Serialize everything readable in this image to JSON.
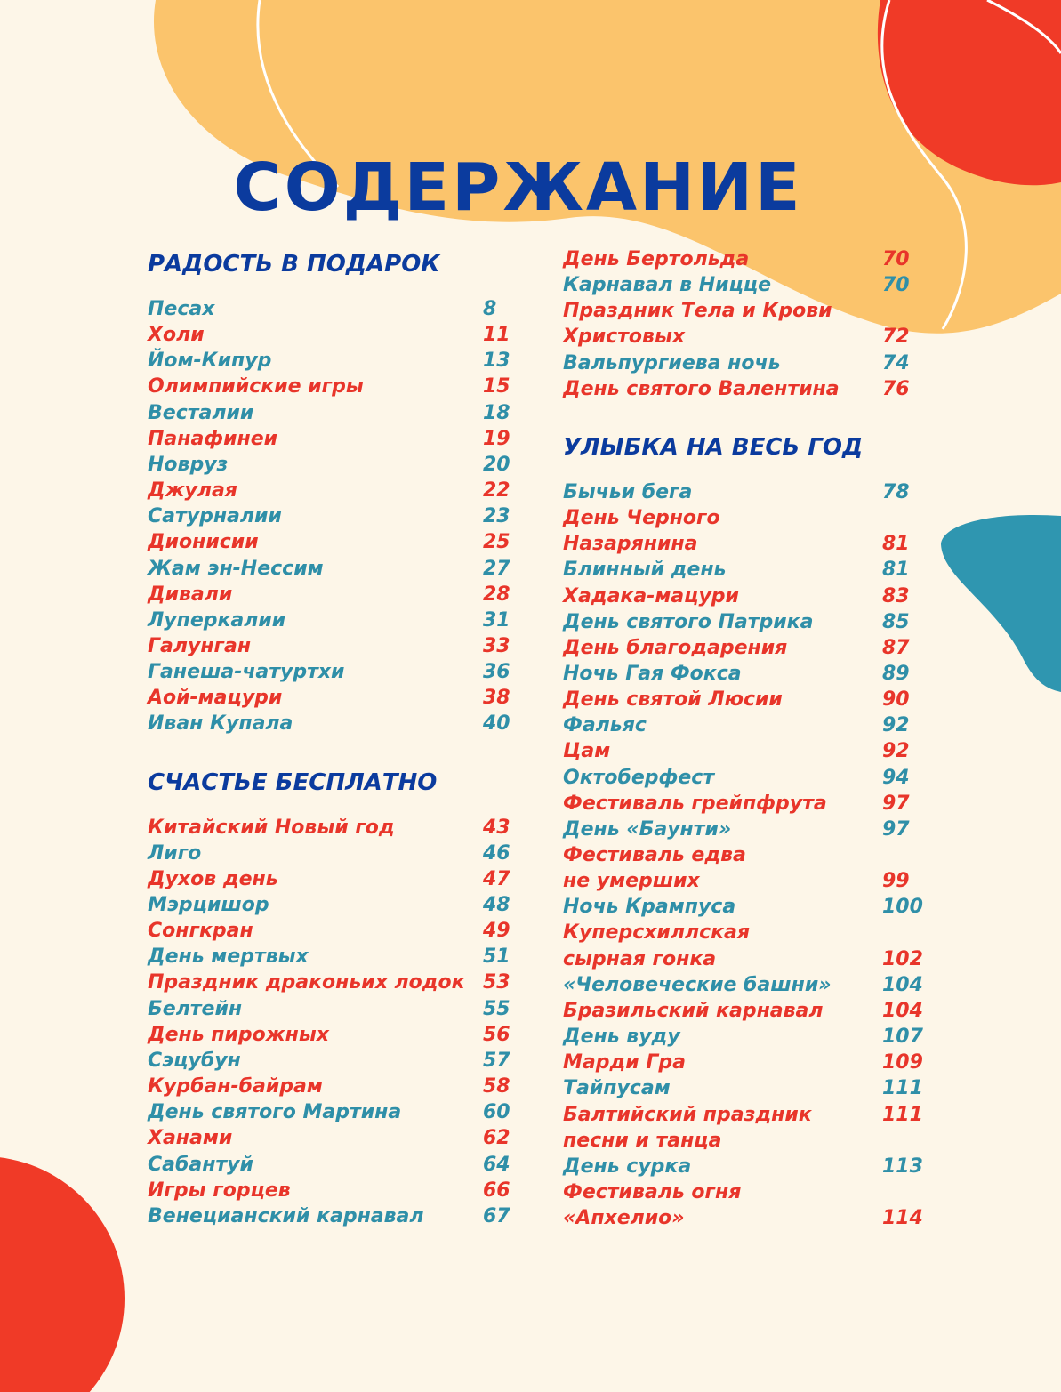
{
  "title": "СОДЕРЖАНИЕ",
  "columns": [
    [
      {
        "heading": "РАДОСТЬ В ПОДАРОК",
        "entries": [
          {
            "color": "#2f8fa8",
            "lines": [
              {
                "text": "Песах",
                "page": 8
              }
            ]
          },
          {
            "color": "#e8352a",
            "lines": [
              {
                "text": "Холи",
                "page": 11
              }
            ]
          },
          {
            "color": "#2f8fa8",
            "lines": [
              {
                "text": "Йом-Кипур",
                "page": 13
              }
            ]
          },
          {
            "color": "#e8352a",
            "lines": [
              {
                "text": "Олимпийские игры",
                "page": 15
              }
            ]
          },
          {
            "color": "#2f8fa8",
            "lines": [
              {
                "text": "Весталии",
                "page": 18
              }
            ]
          },
          {
            "color": "#e8352a",
            "lines": [
              {
                "text": "Панафинеи",
                "page": 19
              }
            ]
          },
          {
            "color": "#2f8fa8",
            "lines": [
              {
                "text": "Новруз",
                "page": 20
              }
            ]
          },
          {
            "color": "#e8352a",
            "lines": [
              {
                "text": "Джулая",
                "page": 22
              }
            ]
          },
          {
            "color": "#2f8fa8",
            "lines": [
              {
                "text": "Сатурналии",
                "page": 23
              }
            ]
          },
          {
            "color": "#e8352a",
            "lines": [
              {
                "text": "Дионисии",
                "page": 25
              }
            ]
          },
          {
            "color": "#2f8fa8",
            "lines": [
              {
                "text": "Жам эн-Нессим",
                "page": 27
              }
            ]
          },
          {
            "color": "#e8352a",
            "lines": [
              {
                "text": "Дивали",
                "page": 28
              }
            ]
          },
          {
            "color": "#2f8fa8",
            "lines": [
              {
                "text": "Луперкалии",
                "page": 31
              }
            ]
          },
          {
            "color": "#e8352a",
            "lines": [
              {
                "text": "Галунган",
                "page": 33
              }
            ]
          },
          {
            "color": "#2f8fa8",
            "lines": [
              {
                "text": "Ганеша-чатуртхи",
                "page": 36
              }
            ]
          },
          {
            "color": "#e8352a",
            "lines": [
              {
                "text": "Аой-мацури",
                "page": 38
              }
            ]
          },
          {
            "color": "#2f8fa8",
            "lines": [
              {
                "text": "Иван Купала",
                "page": 40
              }
            ]
          }
        ]
      },
      {
        "heading": "СЧАСТЬЕ БЕСПЛАТНО",
        "entries": [
          {
            "color": "#e8352a",
            "lines": [
              {
                "text": "Китайский Новый год",
                "page": 43
              }
            ]
          },
          {
            "color": "#2f8fa8",
            "lines": [
              {
                "text": "Лиго",
                "page": 46
              }
            ]
          },
          {
            "color": "#e8352a",
            "lines": [
              {
                "text": "Духов день",
                "page": 47
              }
            ]
          },
          {
            "color": "#2f8fa8",
            "lines": [
              {
                "text": "Мэрцишор",
                "page": 48
              }
            ]
          },
          {
            "color": "#e8352a",
            "lines": [
              {
                "text": "Сонгкран",
                "page": 49
              }
            ]
          },
          {
            "color": "#2f8fa8",
            "lines": [
              {
                "text": "День мертвых",
                "page": 51
              }
            ]
          },
          {
            "color": "#e8352a",
            "lines": [
              {
                "text": "Праздник драконьих лодок",
                "page": 53
              }
            ]
          },
          {
            "color": "#2f8fa8",
            "lines": [
              {
                "text": "Белтейн",
                "page": 55
              }
            ]
          },
          {
            "color": "#e8352a",
            "lines": [
              {
                "text": "День пирожных",
                "page": 56
              }
            ]
          },
          {
            "color": "#2f8fa8",
            "lines": [
              {
                "text": "Сэцубун",
                "page": 57
              }
            ]
          },
          {
            "color": "#e8352a",
            "lines": [
              {
                "text": "Курбан-байрам",
                "page": 58
              }
            ]
          },
          {
            "color": "#2f8fa8",
            "lines": [
              {
                "text": "День святого Мартина",
                "page": 60
              }
            ]
          },
          {
            "color": "#e8352a",
            "lines": [
              {
                "text": "Ханами",
                "page": 62
              }
            ]
          },
          {
            "color": "#2f8fa8",
            "lines": [
              {
                "text": "Сабантуй",
                "page": 64
              }
            ]
          },
          {
            "color": "#e8352a",
            "lines": [
              {
                "text": "Игры горцев",
                "page": 66
              }
            ]
          },
          {
            "color": "#2f8fa8",
            "lines": [
              {
                "text": "Венецианский карнавал",
                "page": 67
              }
            ]
          }
        ]
      }
    ],
    [
      {
        "entries": [
          {
            "color": "#e8352a",
            "lines": [
              {
                "text": "День Бертольда",
                "page": 70
              }
            ]
          },
          {
            "color": "#2f8fa8",
            "lines": [
              {
                "text": "Карнавал в Ницце",
                "page": 70
              }
            ]
          },
          {
            "color": "#e8352a",
            "lines": [
              {
                "text": "Праздник Тела и Крови"
              },
              {
                "text": "Христовых",
                "page": 72
              }
            ]
          },
          {
            "color": "#2f8fa8",
            "lines": [
              {
                "text": "Вальпургиева ночь",
                "page": 74
              }
            ]
          },
          {
            "color": "#e8352a",
            "lines": [
              {
                "text": "День святого Валентина",
                "page": 76
              }
            ]
          }
        ]
      },
      {
        "heading": "УЛЫБКА НА ВЕСЬ ГОД",
        "entries": [
          {
            "color": "#2f8fa8",
            "lines": [
              {
                "text": "Бычьи бега",
                "page": 78
              }
            ]
          },
          {
            "color": "#e8352a",
            "lines": [
              {
                "text": "День Черного"
              },
              {
                "text": "Назарянина",
                "page": 81
              }
            ]
          },
          {
            "color": "#2f8fa8",
            "lines": [
              {
                "text": "Блинный день",
                "page": 81
              }
            ]
          },
          {
            "color": "#e8352a",
            "lines": [
              {
                "text": "Хадака-мацури",
                "page": 83
              }
            ]
          },
          {
            "color": "#2f8fa8",
            "lines": [
              {
                "text": "День святого Патрика",
                "page": 85
              }
            ]
          },
          {
            "color": "#e8352a",
            "lines": [
              {
                "text": "День благодарения",
                "page": 87
              }
            ]
          },
          {
            "color": "#2f8fa8",
            "lines": [
              {
                "text": "Ночь Гая Фокса",
                "page": 89
              }
            ]
          },
          {
            "color": "#e8352a",
            "lines": [
              {
                "text": "День святой Люсии",
                "page": 90
              }
            ]
          },
          {
            "color": "#2f8fa8",
            "lines": [
              {
                "text": "Фальяс",
                "page": 92
              }
            ]
          },
          {
            "color": "#e8352a",
            "lines": [
              {
                "text": "Цам",
                "page": 92
              }
            ]
          },
          {
            "color": "#2f8fa8",
            "lines": [
              {
                "text": "Октоберфест",
                "page": 94
              }
            ]
          },
          {
            "color": "#e8352a",
            "lines": [
              {
                "text": "Фестиваль грейпфрута",
                "page": 97
              }
            ]
          },
          {
            "color": "#2f8fa8",
            "lines": [
              {
                "text": "День «Баунти»",
                "page": 97
              }
            ]
          },
          {
            "color": "#e8352a",
            "lines": [
              {
                "text": "Фестиваль едва"
              },
              {
                "text": "не умерших",
                "page": 99
              }
            ]
          },
          {
            "color": "#2f8fa8",
            "lines": [
              {
                "text": "Ночь Крампуса",
                "page": 100
              }
            ]
          },
          {
            "color": "#e8352a",
            "lines": [
              {
                "text": "Куперсхиллская"
              },
              {
                "text": "сырная гонка",
                "page": 102
              }
            ]
          },
          {
            "color": "#2f8fa8",
            "lines": [
              {
                "text": "«Человеческие башни»",
                "page": 104
              }
            ]
          },
          {
            "color": "#e8352a",
            "lines": [
              {
                "text": "Бразильский карнавал",
                "page": 104
              }
            ]
          },
          {
            "color": "#2f8fa8",
            "lines": [
              {
                "text": "День вуду",
                "page": 107
              }
            ]
          },
          {
            "color": "#e8352a",
            "lines": [
              {
                "text": "Марди Гра",
                "page": 109
              }
            ]
          },
          {
            "color": "#2f8fa8",
            "lines": [
              {
                "text": "Тайпусам",
                "page": 111
              }
            ]
          },
          {
            "color": "#e8352a",
            "lines": [
              {
                "text": "Балтийский праздник",
                "page": 111
              },
              {
                "text": "песни и танца"
              }
            ]
          },
          {
            "color": "#2f8fa8",
            "lines": [
              {
                "text": "День сурка",
                "page": 113
              }
            ]
          },
          {
            "color": "#e8352a",
            "lines": [
              {
                "text": "Фестиваль огня"
              },
              {
                "text": "«Апхелио»",
                "page": 114
              }
            ]
          }
        ]
      }
    ]
  ]
}
